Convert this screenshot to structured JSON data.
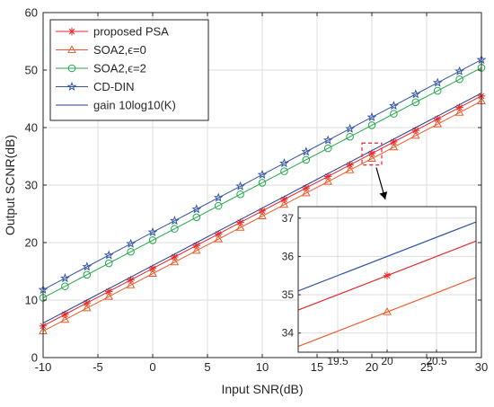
{
  "chart_data": {
    "type": "line",
    "title": "",
    "xlabel": "Input SNR(dB)",
    "ylabel": "Output SCNR(dB)",
    "xlim": [
      -10,
      30
    ],
    "ylim": [
      0,
      60
    ],
    "xticks": [
      -10,
      -5,
      0,
      5,
      10,
      15,
      20,
      25,
      30
    ],
    "yticks": [
      0,
      10,
      20,
      30,
      40,
      50,
      60
    ],
    "grid": true,
    "legend_position": "top-left",
    "x": [
      -10,
      -8,
      -6,
      -4,
      -2,
      0,
      2,
      4,
      6,
      8,
      10,
      12,
      14,
      16,
      18,
      20,
      22,
      24,
      26,
      28,
      30
    ],
    "series": [
      {
        "name": "proposed PSA",
        "color": "#e8262a",
        "marker": "asterisk",
        "markers": true,
        "values": [
          5.5,
          7.5,
          9.5,
          11.5,
          13.5,
          15.5,
          17.5,
          19.5,
          21.5,
          23.5,
          25.5,
          27.5,
          29.5,
          31.5,
          33.5,
          35.5,
          37.5,
          39.5,
          41.5,
          43.5,
          45.5
        ]
      },
      {
        "name": "SOA2,ϵ=0",
        "color": "#f05a28",
        "marker": "triangle",
        "markers": true,
        "values": [
          4.6,
          6.6,
          8.6,
          10.6,
          12.6,
          14.6,
          16.6,
          18.6,
          20.6,
          22.6,
          24.6,
          26.6,
          28.6,
          30.6,
          32.6,
          34.6,
          36.6,
          38.6,
          40.6,
          42.6,
          44.6
        ]
      },
      {
        "name": "SOA2,ϵ=2",
        "color": "#21a84a",
        "marker": "circle",
        "markers": true,
        "values": [
          10.4,
          12.4,
          14.4,
          16.4,
          18.4,
          20.4,
          22.4,
          24.4,
          26.4,
          28.4,
          30.4,
          32.4,
          34.4,
          36.4,
          38.4,
          40.4,
          42.4,
          44.4,
          46.4,
          48.4,
          50.4
        ]
      },
      {
        "name": "CD-DIN",
        "color": "#3357a6",
        "marker": "star",
        "markers": true,
        "values": [
          11.8,
          13.8,
          15.8,
          17.8,
          19.8,
          21.8,
          23.8,
          25.8,
          27.8,
          29.8,
          31.8,
          33.8,
          35.8,
          37.8,
          39.8,
          41.8,
          43.8,
          45.8,
          47.8,
          49.8,
          51.8
        ]
      },
      {
        "name": "gain 10log10(K)",
        "color": "#2b3a8c",
        "marker": "none",
        "markers": false,
        "values": [
          6.0,
          8.0,
          10.0,
          12.0,
          14.0,
          16.0,
          18.0,
          20.0,
          22.0,
          24.0,
          26.0,
          28.0,
          30.0,
          32.0,
          34.0,
          36.0,
          38.0,
          40.0,
          42.0,
          44.0,
          46.0
        ]
      }
    ],
    "inset": {
      "type": "line",
      "xlim": [
        19.1,
        20.9
      ],
      "ylim": [
        33.5,
        37.3
      ],
      "xticks": [
        19.5,
        20,
        20.5
      ],
      "yticks": [
        34,
        35,
        36,
        37
      ],
      "xtick_labels": [
        "19.5",
        "20",
        "20.5"
      ],
      "ytick_labels": [
        "34",
        "35",
        "36",
        "37"
      ],
      "source_region": {
        "x": [
          19.1,
          20.9
        ],
        "y": [
          33.5,
          37.3
        ]
      },
      "series": [
        {
          "color": "#3357a6",
          "marker": "none",
          "x": [
            19.1,
            20.9
          ],
          "values": [
            35.1,
            36.9
          ]
        },
        {
          "color": "#e8262a",
          "marker": "none",
          "x": [
            19.1,
            20.9
          ],
          "values": [
            34.6,
            36.4
          ]
        },
        {
          "color": "#f05a28",
          "marker": "none",
          "x": [
            19.1,
            20.9
          ],
          "values": [
            33.65,
            35.45
          ]
        },
        {
          "color": "#e8262a",
          "marker": "asterisk",
          "x": [
            20
          ],
          "values": [
            35.5
          ]
        },
        {
          "color": "#f05a28",
          "marker": "triangle",
          "x": [
            20
          ],
          "values": [
            34.55
          ]
        }
      ]
    }
  }
}
